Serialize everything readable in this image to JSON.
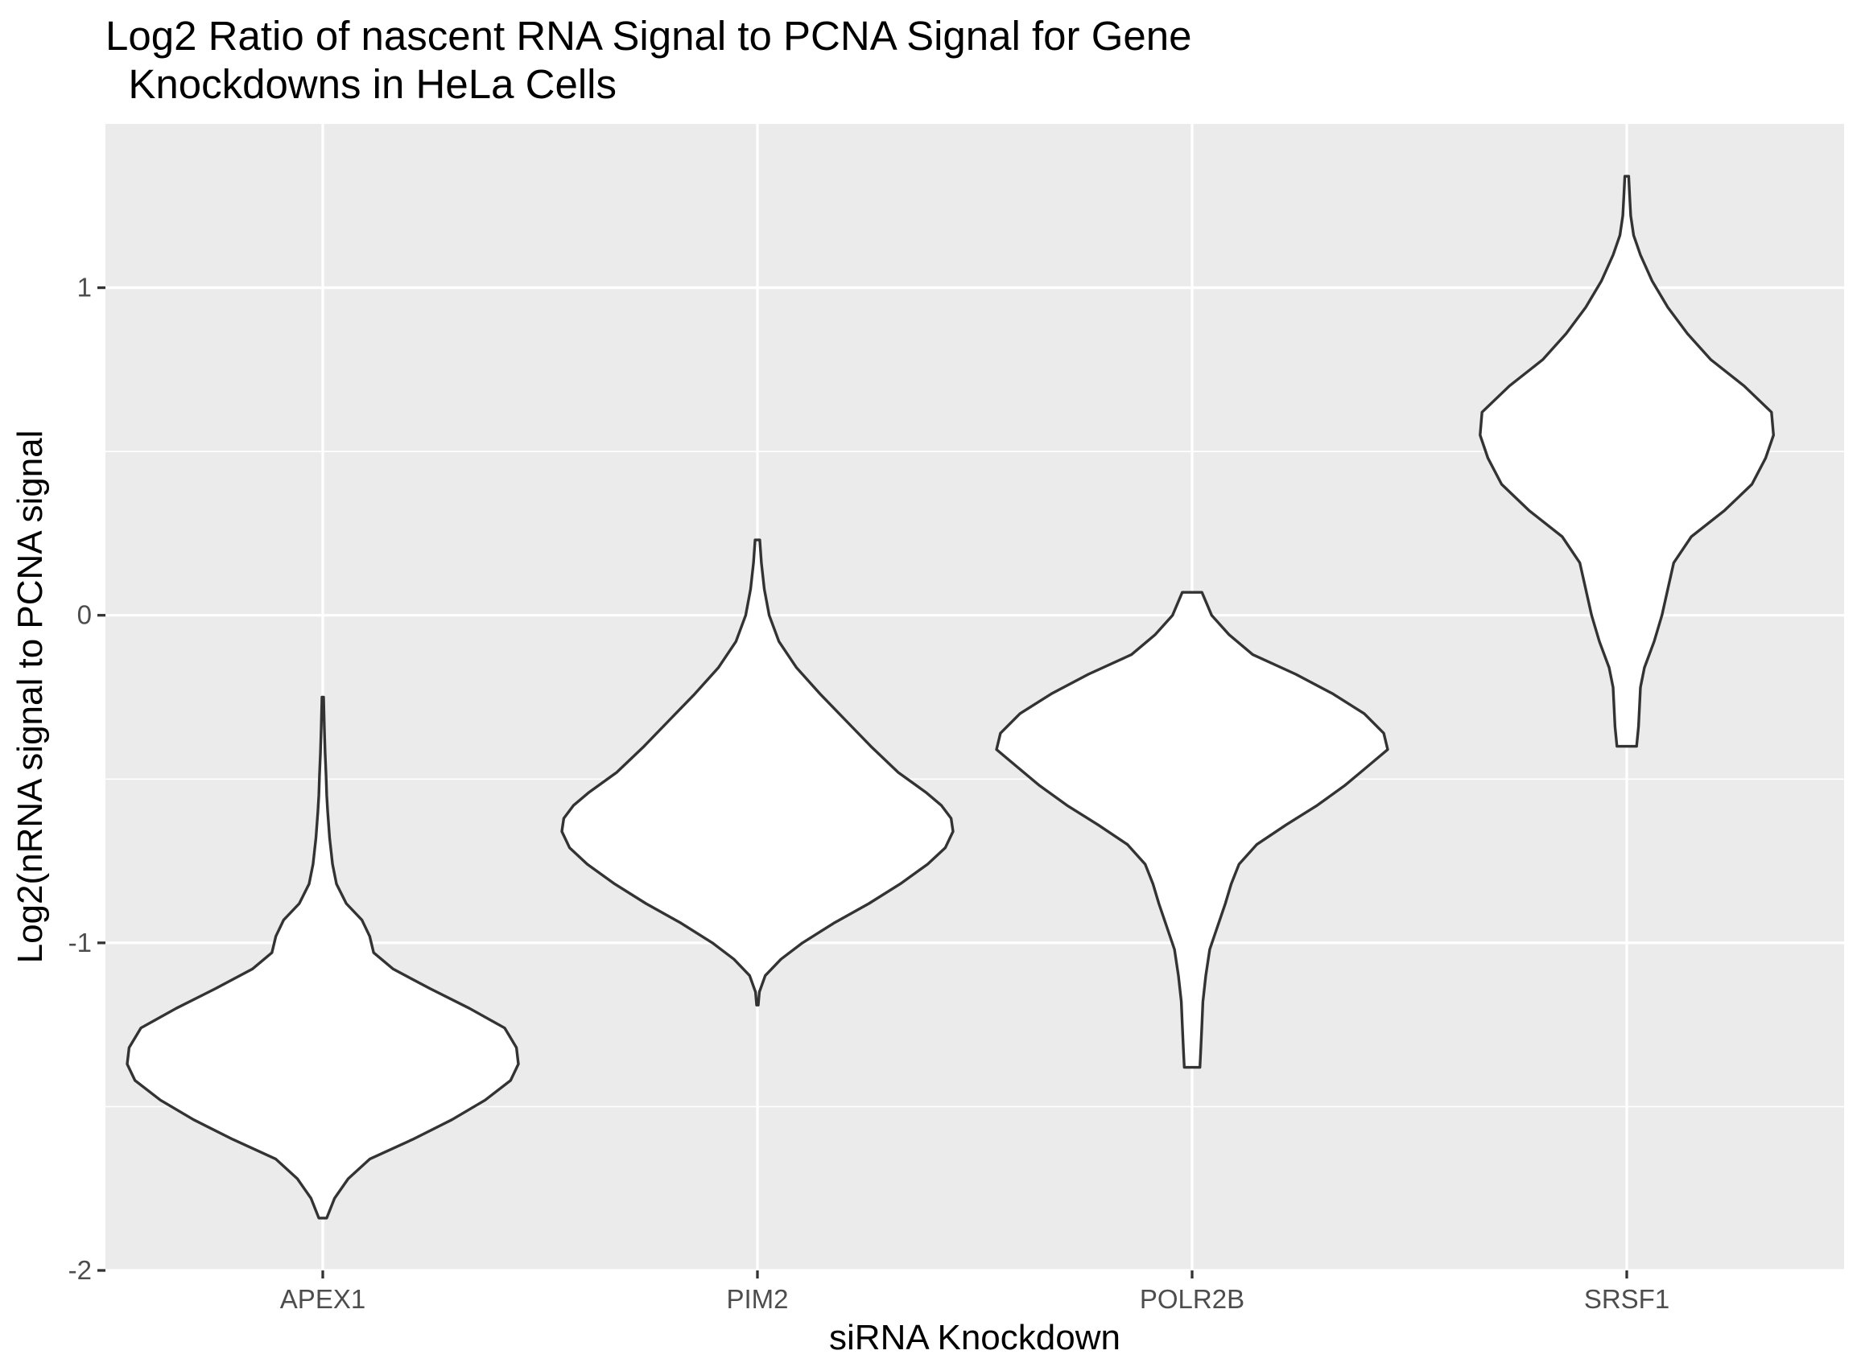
{
  "chart_data": {
    "type": "violin",
    "title_line1": "Log2 Ratio of nascent RNA Signal to PCNA Signal for Gene",
    "title_line2": "  Knockdowns in HeLa Cells",
    "xlabel": "siRNA Knockdown",
    "ylabel": "Log2(nRNA signal to PCNA signal",
    "ylim": [
      -2.0,
      1.5
    ],
    "yticks": [
      -2,
      -1,
      0,
      1
    ],
    "ytick_labels": [
      "-2",
      "-1",
      "0",
      "1"
    ],
    "categories": [
      "APEX1",
      "PIM2",
      "POLR2B",
      "SRSF1"
    ],
    "grid": true,
    "colors": {
      "panel": "#ebebeb",
      "grid": "#ffffff",
      "outline": "#333333",
      "fill": "#ffffff"
    },
    "violins": [
      {
        "category": "APEX1",
        "min": -1.84,
        "max": -0.25,
        "profile": [
          [
            -1.84,
            0.02
          ],
          [
            -1.78,
            0.06
          ],
          [
            -1.72,
            0.13
          ],
          [
            -1.66,
            0.24
          ],
          [
            -1.6,
            0.46
          ],
          [
            -1.54,
            0.66
          ],
          [
            -1.48,
            0.83
          ],
          [
            -1.42,
            0.96
          ],
          [
            -1.37,
            1.0
          ],
          [
            -1.32,
            0.99
          ],
          [
            -1.26,
            0.93
          ],
          [
            -1.2,
            0.75
          ],
          [
            -1.14,
            0.55
          ],
          [
            -1.08,
            0.36
          ],
          [
            -1.03,
            0.26
          ],
          [
            -0.98,
            0.24
          ],
          [
            -0.93,
            0.2
          ],
          [
            -0.88,
            0.12
          ],
          [
            -0.82,
            0.07
          ],
          [
            -0.76,
            0.05
          ],
          [
            -0.68,
            0.035
          ],
          [
            -0.6,
            0.025
          ],
          [
            -0.55,
            0.02
          ],
          [
            -0.49,
            0.017
          ],
          [
            -0.42,
            0.012
          ],
          [
            -0.34,
            0.008
          ],
          [
            -0.25,
            0.004
          ]
        ]
      },
      {
        "category": "PIM2",
        "min": -1.19,
        "max": 0.23,
        "profile": [
          [
            -1.19,
            0.004
          ],
          [
            -1.15,
            0.01
          ],
          [
            -1.1,
            0.04
          ],
          [
            -1.05,
            0.12
          ],
          [
            -1.0,
            0.23
          ],
          [
            -0.94,
            0.39
          ],
          [
            -0.88,
            0.57
          ],
          [
            -0.82,
            0.73
          ],
          [
            -0.76,
            0.87
          ],
          [
            -0.71,
            0.96
          ],
          [
            -0.66,
            1.0
          ],
          [
            -0.62,
            0.99
          ],
          [
            -0.58,
            0.94
          ],
          [
            -0.54,
            0.86
          ],
          [
            -0.48,
            0.72
          ],
          [
            -0.4,
            0.58
          ],
          [
            -0.32,
            0.45
          ],
          [
            -0.24,
            0.32
          ],
          [
            -0.16,
            0.2
          ],
          [
            -0.08,
            0.11
          ],
          [
            0.0,
            0.06
          ],
          [
            0.08,
            0.035
          ],
          [
            0.16,
            0.02
          ],
          [
            0.23,
            0.012
          ]
        ]
      },
      {
        "category": "POLR2B",
        "min": -1.38,
        "max": 0.07,
        "profile": [
          [
            -1.38,
            0.04
          ],
          [
            -1.32,
            0.045
          ],
          [
            -1.25,
            0.05
          ],
          [
            -1.18,
            0.055
          ],
          [
            -1.1,
            0.07
          ],
          [
            -1.02,
            0.09
          ],
          [
            -0.95,
            0.13
          ],
          [
            -0.88,
            0.17
          ],
          [
            -0.82,
            0.2
          ],
          [
            -0.76,
            0.24
          ],
          [
            -0.7,
            0.33
          ],
          [
            -0.64,
            0.48
          ],
          [
            -0.58,
            0.64
          ],
          [
            -0.52,
            0.78
          ],
          [
            -0.46,
            0.9
          ],
          [
            -0.41,
            1.0
          ],
          [
            -0.36,
            0.98
          ],
          [
            -0.3,
            0.88
          ],
          [
            -0.24,
            0.72
          ],
          [
            -0.18,
            0.53
          ],
          [
            -0.12,
            0.31
          ],
          [
            -0.06,
            0.19
          ],
          [
            0.0,
            0.1
          ],
          [
            0.07,
            0.05
          ]
        ]
      },
      {
        "category": "SRSF1",
        "min": -0.4,
        "max": 1.34,
        "profile": [
          [
            -0.4,
            0.05
          ],
          [
            -0.34,
            0.06
          ],
          [
            -0.28,
            0.065
          ],
          [
            -0.22,
            0.07
          ],
          [
            -0.16,
            0.09
          ],
          [
            -0.08,
            0.14
          ],
          [
            0.0,
            0.18
          ],
          [
            0.08,
            0.21
          ],
          [
            0.16,
            0.24
          ],
          [
            0.24,
            0.33
          ],
          [
            0.32,
            0.5
          ],
          [
            0.4,
            0.64
          ],
          [
            0.48,
            0.71
          ],
          [
            0.55,
            0.75
          ],
          [
            0.62,
            0.74
          ],
          [
            0.7,
            0.6
          ],
          [
            0.78,
            0.43
          ],
          [
            0.86,
            0.31
          ],
          [
            0.94,
            0.21
          ],
          [
            1.02,
            0.13
          ],
          [
            1.1,
            0.07
          ],
          [
            1.16,
            0.035
          ],
          [
            1.22,
            0.02
          ],
          [
            1.28,
            0.015
          ],
          [
            1.34,
            0.01
          ]
        ]
      }
    ]
  }
}
